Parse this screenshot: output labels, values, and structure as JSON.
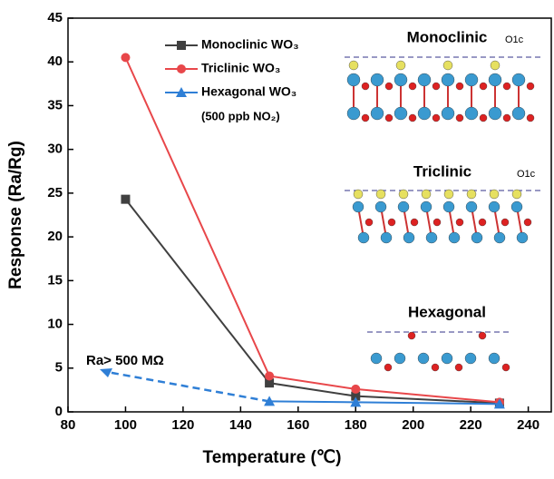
{
  "chart_data": {
    "type": "line",
    "x_label": "Temperature (℃)",
    "y_label": "Response (Ra/Rg)",
    "x": [
      100,
      150,
      180,
      230
    ],
    "series": [
      {
        "name": "Monoclinic WO₃",
        "color": "#404040",
        "marker": "square",
        "values": [
          24.3,
          3.3,
          1.8,
          1.0
        ]
      },
      {
        "name": "Triclinic WO₃",
        "color": "#e8474a",
        "marker": "circle",
        "values": [
          40.5,
          4.1,
          2.6,
          1.1
        ]
      },
      {
        "name": "Hexagonal WO₃",
        "color": "#2f7fd6",
        "marker": "triangle",
        "values": [
          null,
          1.2,
          1.1,
          0.9
        ]
      }
    ],
    "xlim": [
      80,
      248
    ],
    "ylim": [
      0,
      45
    ],
    "xticks": [
      80,
      100,
      120,
      140,
      160,
      180,
      200,
      220,
      240
    ],
    "yticks": [
      0,
      5,
      10,
      15,
      20,
      25,
      30,
      35,
      40,
      45
    ],
    "legend": "upper-center",
    "annotations": {
      "condition": "(500 ppb NO₂)",
      "arrow_note": "Ra> 500 MΩ",
      "inset_monoclinic": "Monoclinic",
      "inset_triclinic": "Triclinic",
      "inset_hexagonal": "Hexagonal",
      "site_monoclinic": "O1c",
      "site_triclinic": "O1c"
    }
  }
}
